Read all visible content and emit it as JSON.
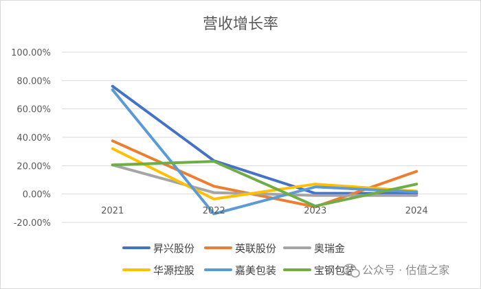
{
  "chart_data": {
    "type": "line",
    "title": "营收增长率",
    "categories": [
      "2021",
      "2022",
      "2023",
      "2024"
    ],
    "y_ticks": [
      "100.00%",
      "80.00%",
      "60.00%",
      "40.00%",
      "20.00%",
      "0.00%",
      "-20.00%"
    ],
    "ylim": [
      -20,
      100
    ],
    "y_unit": "%",
    "grid": true,
    "legend_position": "bottom",
    "series": [
      {
        "name": "昇兴股份",
        "color": "#4472C4",
        "values": [
          76,
          23.5,
          0.5,
          0.5
        ]
      },
      {
        "name": "英联股份",
        "color": "#ED7D31",
        "values": [
          37.5,
          5.5,
          -9,
          16
        ]
      },
      {
        "name": "奥瑞金",
        "color": "#A5A5A5",
        "values": [
          20.5,
          1,
          -1,
          -1
        ]
      },
      {
        "name": "华源控股",
        "color": "#FFC000",
        "values": [
          32,
          -3.5,
          7,
          2
        ]
      },
      {
        "name": "嘉美包装",
        "color": "#5B9BD5",
        "values": [
          73.5,
          -14,
          5,
          1.5
        ]
      },
      {
        "name": "宝钢包装",
        "color": "#70AD47",
        "values": [
          20.5,
          23,
          -8.5,
          7
        ]
      }
    ]
  },
  "watermark": {
    "text": "公众号 · 估值之家",
    "icon": "chat-bubble-icon"
  }
}
